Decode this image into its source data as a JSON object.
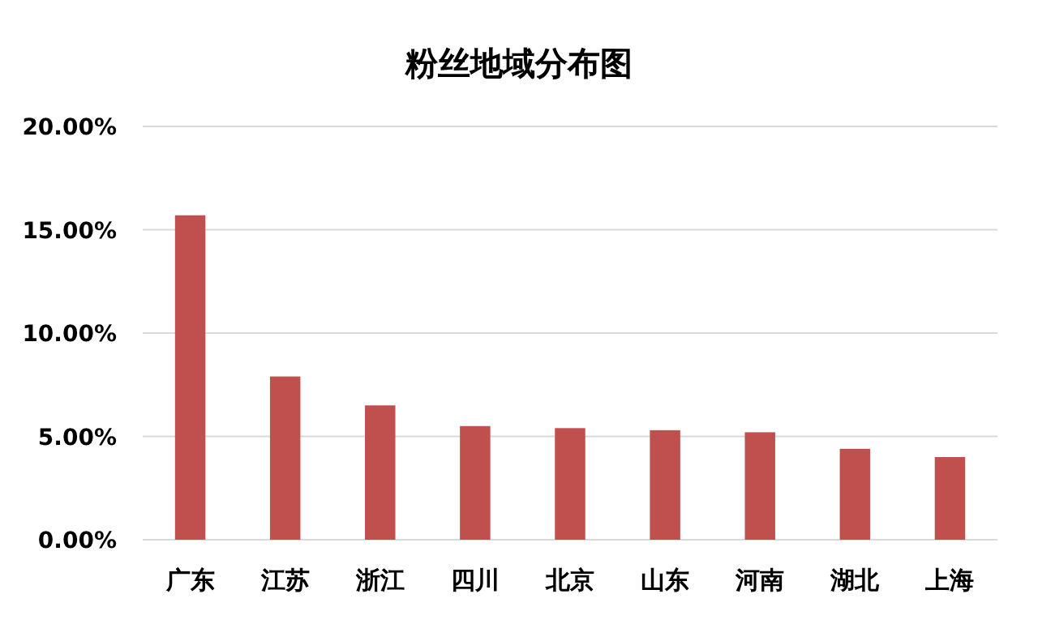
{
  "chart_data": {
    "type": "bar",
    "title": "粉丝地域分布图",
    "categories": [
      "广东",
      "江苏",
      "浙江",
      "四川",
      "北京",
      "山东",
      "河南",
      "湖北",
      "上海"
    ],
    "values": [
      15.7,
      7.9,
      6.5,
      5.5,
      5.4,
      5.3,
      5.2,
      4.4,
      4.0
    ],
    "color": "#c0504d",
    "ylim": [
      0,
      20
    ],
    "yticks": [
      {
        "value": 0,
        "label": "0.00%"
      },
      {
        "value": 5,
        "label": "5.00%"
      },
      {
        "value": 10,
        "label": "10.00%"
      },
      {
        "value": 15,
        "label": "15.00%"
      },
      {
        "value": 20,
        "label": "20.00%"
      }
    ],
    "grid": "y"
  }
}
